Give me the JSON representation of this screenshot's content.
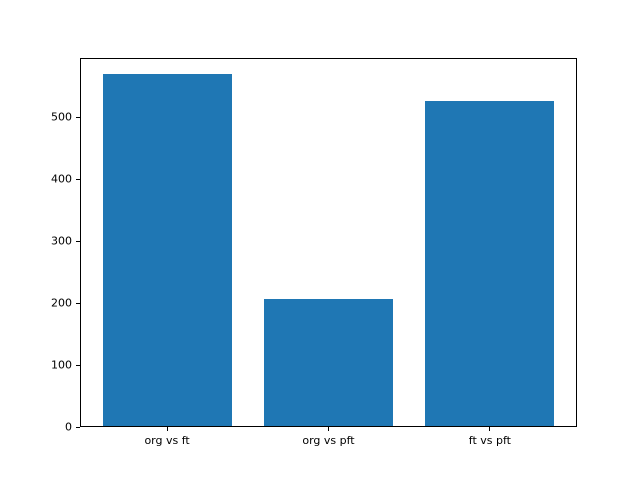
{
  "chart_data": {
    "type": "bar",
    "title": "",
    "xlabel": "",
    "ylabel": "",
    "categories": [
      "org vs ft",
      "org vs pft",
      "ft vs pft"
    ],
    "values": [
      570,
      207,
      527
    ],
    "yticks": [
      0,
      100,
      200,
      300,
      400,
      500
    ],
    "ylim": [
      0,
      596
    ],
    "bar_width_fraction": 0.8,
    "x_margin_fraction": 0.05,
    "bar_color": "#1f77b4",
    "axes_edge_color": "#000000",
    "background_color": "#ffffff",
    "grid": false,
    "legend": "none"
  }
}
